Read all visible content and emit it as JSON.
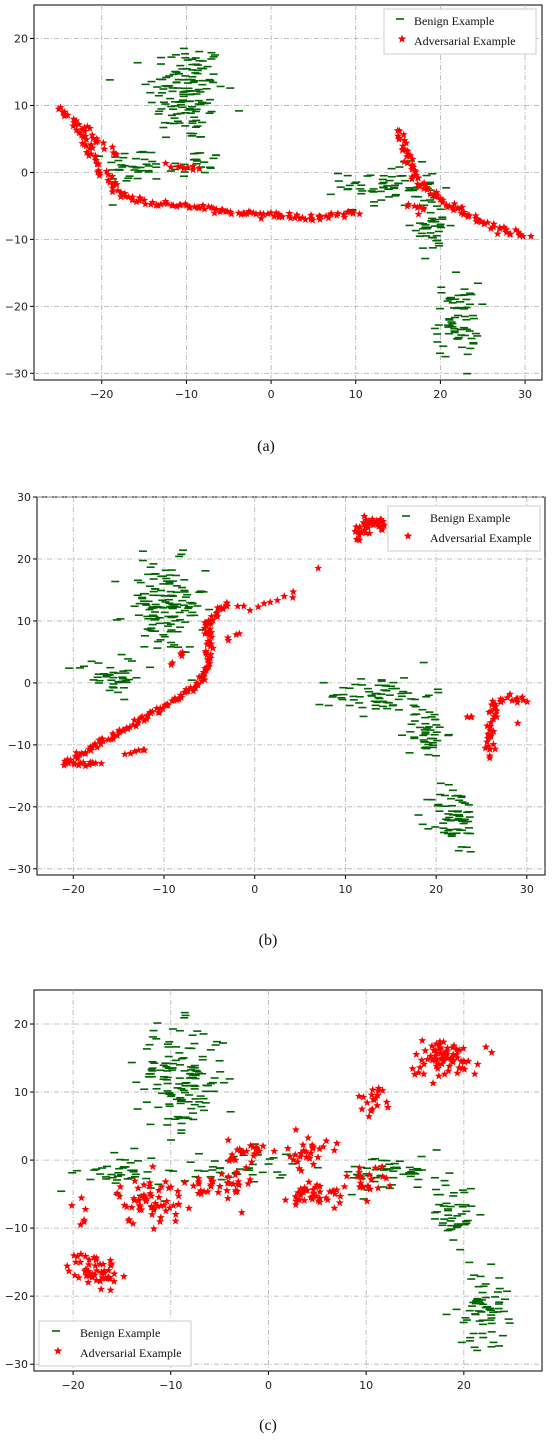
{
  "colors": {
    "benign": "#006400",
    "adversarial": "#ff0000",
    "grid": "#b0b0b0"
  },
  "legend_labels": {
    "benign": "Benign Example",
    "adversarial": "Adversarial Example"
  },
  "chart_data": [
    {
      "caption": "(a)",
      "type": "scatter",
      "legend_position": "top-right",
      "grid": true,
      "xlim": [
        -28,
        32
      ],
      "ylim": [
        -31,
        25
      ],
      "xticks": [
        -20,
        -10,
        0,
        10,
        20,
        30
      ],
      "yticks": [
        -30,
        -20,
        -10,
        0,
        10,
        20
      ],
      "xtick_labels": [
        "−20",
        "−10",
        "0",
        "10",
        "20",
        "30"
      ],
      "ytick_labels": [
        "−30",
        "−20",
        "−10",
        "0",
        "10",
        "20"
      ],
      "series": [
        {
          "name": "Benign Example",
          "marker": "dash",
          "color": "#006400",
          "clusters": [
            {
              "cx": -10,
              "cy": 12,
              "sx": 3.2,
              "sy": 5.5,
              "n": 150
            },
            {
              "cx": -16,
              "cy": 1,
              "sx": 2.5,
              "sy": 2.0,
              "n": 40
            },
            {
              "cx": -9,
              "cy": 1,
              "sx": 2.2,
              "sy": 1.8,
              "n": 25
            },
            {
              "cx": 14,
              "cy": -2,
              "sx": 4.0,
              "sy": 2.2,
              "n": 70
            },
            {
              "cx": 19,
              "cy": -8,
              "sx": 1.5,
              "sy": 3.0,
              "n": 45
            },
            {
              "cx": 22,
              "cy": -22,
              "sx": 1.8,
              "sy": 4.0,
              "n": 70
            }
          ]
        },
        {
          "name": "Adversarial Example",
          "marker": "star",
          "color": "#ff0000",
          "paths": [
            {
              "points": [
                [
                  -25,
                  9.5
                ],
                [
                  -24,
                  8.5
                ],
                [
                  -22,
                  5
                ],
                [
                  -20,
                  0
                ],
                [
                  -18,
                  -3
                ],
                [
                  -15,
                  -4.5
                ],
                [
                  -10,
                  -5
                ],
                [
                  -5,
                  -6
                ],
                [
                  0,
                  -6.3
                ],
                [
                  5,
                  -6.8
                ],
                [
                  10,
                  -6
                ]
              ],
              "n": 150,
              "jitter": 0.4
            },
            {
              "points": [
                [
                  15,
                  6
                ],
                [
                  16,
                  3
                ],
                [
                  17,
                  -1
                ],
                [
                  20,
                  -4
                ],
                [
                  25,
                  -7.5
                ],
                [
                  30,
                  -9.5
                ]
              ],
              "n": 90,
              "jitter": 0.4
            },
            {
              "points": [
                [
                  -22,
                  7
                ],
                [
                  -20,
                  4
                ],
                [
                  -18,
                  3
                ]
              ],
              "n": 15,
              "jitter": 0.5
            },
            {
              "points": [
                [
                  -12,
                  1
                ],
                [
                  -8,
                  0.5
                ]
              ],
              "n": 10,
              "jitter": 0.4
            },
            {
              "points": [
                [
                  16,
                  -5
                ],
                [
                  18,
                  -6
                ]
              ],
              "n": 8,
              "jitter": 0.5
            }
          ]
        }
      ]
    },
    {
      "caption": "(b)",
      "type": "scatter",
      "legend_position": "top-right",
      "grid": true,
      "xlim": [
        -24,
        32
      ],
      "ylim": [
        -31,
        30
      ],
      "xticks": [
        -20,
        -10,
        0,
        10,
        20,
        30
      ],
      "yticks": [
        -30,
        -20,
        -10,
        0,
        10,
        20,
        30
      ],
      "xtick_labels": [
        "−20",
        "−10",
        "0",
        "10",
        "20",
        "30"
      ],
      "ytick_labels": [
        "−30",
        "−20",
        "−10",
        "0",
        "10",
        "20",
        "30"
      ],
      "series": [
        {
          "name": "Benign Example",
          "marker": "dash",
          "color": "#006400",
          "clusters": [
            {
              "cx": -10,
              "cy": 12,
              "sx": 3.2,
              "sy": 5.5,
              "n": 150
            },
            {
              "cx": -16,
              "cy": 1,
              "sx": 2.5,
              "sy": 2.0,
              "n": 40
            },
            {
              "cx": 14,
              "cy": -2,
              "sx": 4.0,
              "sy": 2.2,
              "n": 70
            },
            {
              "cx": 19,
              "cy": -8,
              "sx": 1.5,
              "sy": 3.0,
              "n": 45
            },
            {
              "cx": 22,
              "cy": -22,
              "sx": 1.8,
              "sy": 4.0,
              "n": 70
            }
          ]
        },
        {
          "name": "Adversarial Example",
          "marker": "star",
          "color": "#ff0000",
          "paths": [
            {
              "points": [
                [
                  -21,
                  -13
                ],
                [
                  -15,
                  -8
                ],
                [
                  -10,
                  -4
                ],
                [
                  -6,
                  0
                ],
                [
                  -5,
                  4
                ],
                [
                  -5,
                  10
                ],
                [
                  -3,
                  13
                ]
              ],
              "n": 140,
              "jitter": 0.4
            },
            {
              "points": [
                [
                  -21,
                  -13
                ],
                [
                  -17,
                  -13
                ]
              ],
              "n": 15,
              "jitter": 0.3
            },
            {
              "points": [
                [
                  -14,
                  -11.5
                ],
                [
                  -12,
                  -10.5
                ]
              ],
              "n": 6,
              "jitter": 0.3
            },
            {
              "points": [
                [
                  -2,
                  12
                ],
                [
                  2,
                  13
                ],
                [
                  4.5,
                  14.5
                ]
              ],
              "n": 10,
              "jitter": 0.5
            },
            {
              "points": [
                [
                  -9,
                  3
                ],
                [
                  -8,
                  5
                ]
              ],
              "n": 5,
              "jitter": 0.4
            },
            {
              "points": [
                [
                  -3,
                  7
                ],
                [
                  -2,
                  8
                ]
              ],
              "n": 4,
              "jitter": 0.3
            },
            {
              "points": [
                [
                  7,
                  18.5
                ]
              ],
              "n": 1,
              "jitter": 0.0
            },
            {
              "points": [
                [
                  11.5,
                  23.5
                ],
                [
                  12.5,
                  26
                ],
                [
                  13.5,
                  26.5
                ],
                [
                  14,
                  25
                ]
              ],
              "n": 40,
              "jitter": 0.7
            },
            {
              "points": [
                [
                  26,
                  -12
                ],
                [
                  26,
                  -8
                ],
                [
                  26.5,
                  -3
                ],
                [
                  28,
                  -2
                ],
                [
                  30,
                  -3
                ]
              ],
              "n": 45,
              "jitter": 0.5
            },
            {
              "points": [
                [
                  23.5,
                  -5.5
                ],
                [
                  24,
                  -5.5
                ]
              ],
              "n": 3,
              "jitter": 0.2
            },
            {
              "points": [
                [
                  29,
                  -6.5
                ]
              ],
              "n": 1,
              "jitter": 0.0
            }
          ]
        }
      ]
    },
    {
      "caption": "(c)",
      "type": "scatter",
      "legend_position": "bottom-left",
      "grid": true,
      "xlim": [
        -24,
        28
      ],
      "ylim": [
        -31,
        25
      ],
      "xticks": [
        -20,
        -10,
        0,
        10,
        20
      ],
      "yticks": [
        -30,
        -20,
        -10,
        0,
        10,
        20
      ],
      "xtick_labels": [
        "−20",
        "−10",
        "0",
        "10",
        "20"
      ],
      "ytick_labels": [
        "−30",
        "−20",
        "−10",
        "0",
        "10",
        "20"
      ],
      "series": [
        {
          "name": "Benign Example",
          "marker": "dash",
          "color": "#006400",
          "clusters": [
            {
              "cx": -9,
              "cy": 12,
              "sx": 3.2,
              "sy": 5.5,
              "n": 150
            },
            {
              "cx": -15,
              "cy": -2,
              "sx": 3.0,
              "sy": 2.0,
              "n": 45
            },
            {
              "cx": -3,
              "cy": -1,
              "sx": 4.0,
              "sy": 2.0,
              "n": 40
            },
            {
              "cx": 13,
              "cy": -2,
              "sx": 4.0,
              "sy": 2.0,
              "n": 60
            },
            {
              "cx": 19,
              "cy": -8,
              "sx": 1.5,
              "sy": 3.0,
              "n": 45
            },
            {
              "cx": 22,
              "cy": -22,
              "sx": 1.8,
              "sy": 4.0,
              "n": 70
            }
          ]
        },
        {
          "name": "Adversarial Example",
          "marker": "star",
          "color": "#ff0000",
          "clusters": [
            {
              "cx": -18,
              "cy": -16,
              "sx": 1.8,
              "sy": 1.8,
              "n": 55
            },
            {
              "cx": -19,
              "cy": -8,
              "sx": 0.8,
              "sy": 2.0,
              "n": 6
            },
            {
              "cx": -12,
              "cy": -6,
              "sx": 2.5,
              "sy": 2.5,
              "n": 60
            },
            {
              "cx": -5,
              "cy": -4,
              "sx": 2.5,
              "sy": 2.0,
              "n": 35
            },
            {
              "cx": -2,
              "cy": 1,
              "sx": 1.5,
              "sy": 1.5,
              "n": 25
            },
            {
              "cx": 4,
              "cy": 1,
              "sx": 1.5,
              "sy": 1.8,
              "n": 30
            },
            {
              "cx": 5,
              "cy": -5,
              "sx": 2.0,
              "sy": 1.5,
              "n": 40
            },
            {
              "cx": 10,
              "cy": -3,
              "sx": 1.5,
              "sy": 1.5,
              "n": 20
            },
            {
              "cx": 11,
              "cy": 9,
              "sx": 1.3,
              "sy": 1.5,
              "n": 20
            },
            {
              "cx": 18,
              "cy": 15,
              "sx": 2.5,
              "sy": 2.0,
              "n": 75
            }
          ]
        }
      ]
    }
  ]
}
